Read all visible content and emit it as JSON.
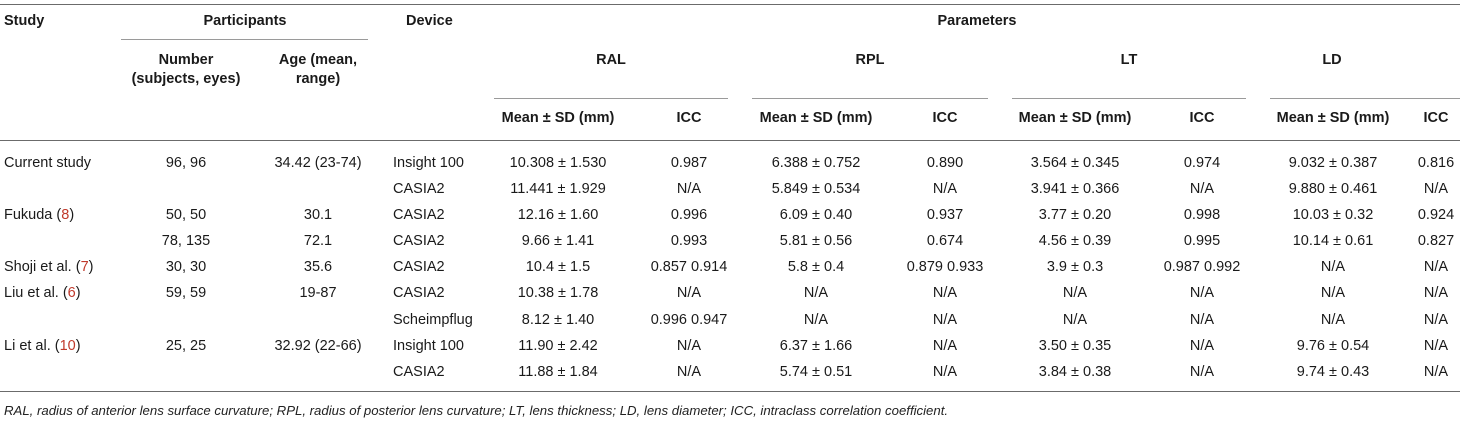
{
  "headers": {
    "study": "Study",
    "participants": "Participants",
    "device": "Device",
    "parameters": "Parameters",
    "number_l1": "Number",
    "number_l2": "(subjects, eyes)",
    "age_l1": "Age (mean,",
    "age_l2": "range)",
    "groups": [
      "RAL",
      "RPL",
      "LT",
      "LD"
    ],
    "mean_sd": "Mean ± SD (mm)",
    "icc": "ICC"
  },
  "rows": [
    {
      "study": "Current study",
      "ref": "",
      "number": "96, 96",
      "age": "34.42 (23-74)",
      "device": "Insight 100",
      "vals": [
        "10.308 ± 1.530",
        "0.987",
        "6.388 ± 0.752",
        "0.890",
        "3.564 ± 0.345",
        "0.974",
        "9.032 ± 0.387",
        "0.816"
      ]
    },
    {
      "study": "",
      "ref": "",
      "number": "",
      "age": "",
      "device": "CASIA2",
      "vals": [
        "11.441 ± 1.929",
        "N/A",
        "5.849 ± 0.534",
        "N/A",
        "3.941 ± 0.366",
        "N/A",
        "9.880 ± 0.461",
        "N/A"
      ]
    },
    {
      "study": "Fukuda (",
      "ref": "8",
      "number": "50, 50",
      "age": "30.1",
      "device": "CASIA2",
      "vals": [
        "12.16 ± 1.60",
        "0.996",
        "6.09 ± 0.40",
        "0.937",
        "3.77 ± 0.20",
        "0.998",
        "10.03 ± 0.32",
        "0.924"
      ]
    },
    {
      "study": "",
      "ref": "",
      "number": "78, 135",
      "age": "72.1",
      "device": "CASIA2",
      "vals": [
        "9.66 ± 1.41",
        "0.993",
        "5.81 ± 0.56",
        "0.674",
        "4.56 ± 0.39",
        "0.995",
        "10.14 ± 0.61",
        "0.827"
      ]
    },
    {
      "study": "Shoji et al. (",
      "ref": "7",
      "number": "30, 30",
      "age": "35.6",
      "device": "CASIA2",
      "vals": [
        "10.4 ± 1.5",
        "0.857 0.914",
        "5.8 ± 0.4",
        "0.879 0.933",
        "3.9 ± 0.3",
        "0.987 0.992",
        "N/A",
        "N/A"
      ]
    },
    {
      "study": "Liu et al. (",
      "ref": "6",
      "number": "59, 59",
      "age": "19-87",
      "device": "CASIA2",
      "vals": [
        "10.38 ± 1.78",
        "N/A",
        "N/A",
        "N/A",
        "N/A",
        "N/A",
        "N/A",
        "N/A"
      ]
    },
    {
      "study": "",
      "ref": "",
      "number": "",
      "age": "",
      "device": "Scheimpflug",
      "vals": [
        "8.12 ± 1.40",
        "0.996 0.947",
        "N/A",
        "N/A",
        "N/A",
        "N/A",
        "N/A",
        "N/A"
      ]
    },
    {
      "study": "Li et al. (",
      "ref": "10",
      "number": "25, 25",
      "age": "32.92 (22-66)",
      "device": "Insight 100",
      "vals": [
        "11.90 ± 2.42",
        "N/A",
        "6.37 ± 1.66",
        "N/A",
        "3.50 ± 0.35",
        "N/A",
        "9.76 ± 0.54",
        "N/A"
      ]
    },
    {
      "study": "",
      "ref": "",
      "number": "",
      "age": "",
      "device": "CASIA2",
      "vals": [
        "11.88 ± 1.84",
        "N/A",
        "5.74 ± 0.51",
        "N/A",
        "3.84 ± 0.38",
        "N/A",
        "9.74 ± 0.43",
        "N/A"
      ]
    }
  ],
  "footnote": "RAL, radius of anterior lens surface curvature; RPL, radius of posterior lens curvature; LT, lens thickness; LD, lens diameter; ICC, intraclass correlation coefficient."
}
